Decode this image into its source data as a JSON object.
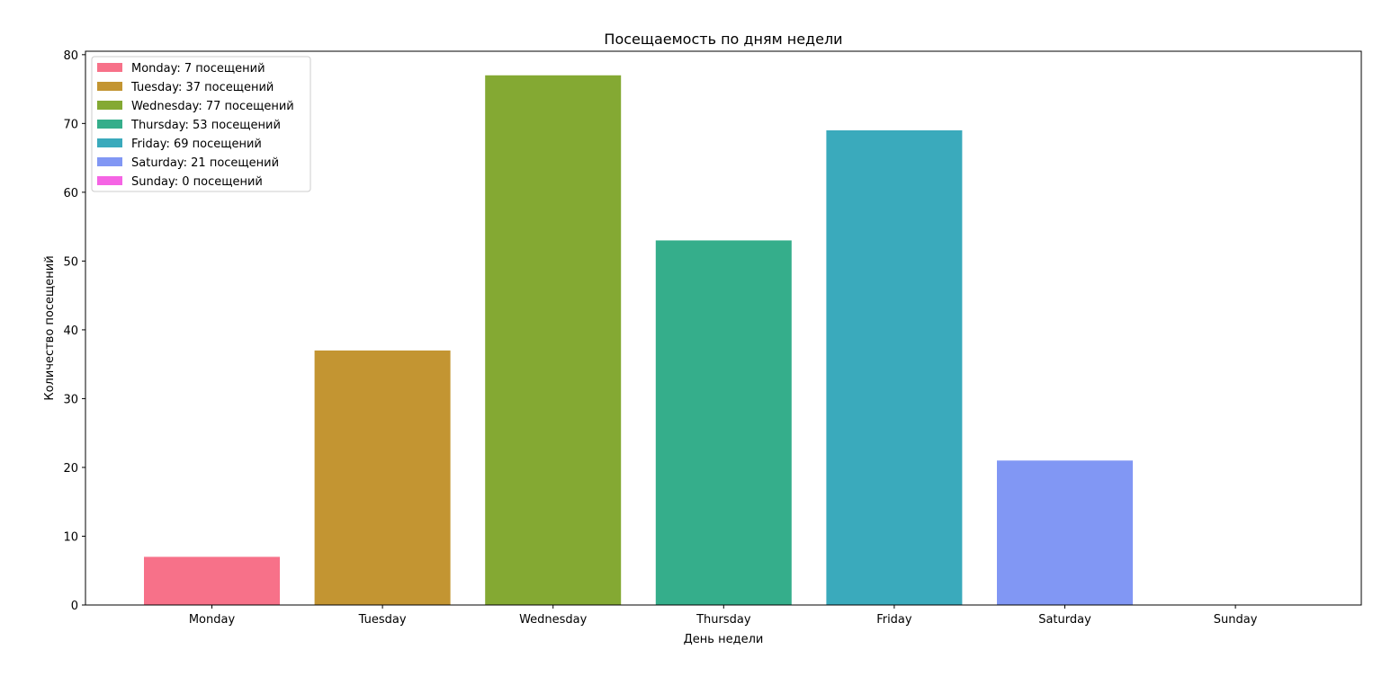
{
  "chart_data": {
    "type": "bar",
    "title": "Посещаемость по дням недели",
    "xlabel": "День недели",
    "ylabel": "Количество посещений",
    "categories": [
      "Monday",
      "Tuesday",
      "Wednesday",
      "Thursday",
      "Friday",
      "Saturday",
      "Sunday"
    ],
    "values": [
      7,
      37,
      77,
      53,
      69,
      21,
      0
    ],
    "colors": [
      "#f77189",
      "#c39532",
      "#84a933",
      "#35ae8b",
      "#3aaabc",
      "#8197f4",
      "#f564e4"
    ],
    "ylim": [
      0,
      80.5
    ],
    "yticks": [
      0,
      10,
      20,
      30,
      40,
      50,
      60,
      70,
      80
    ],
    "grid": false,
    "legend": {
      "position": "top-left",
      "entries": [
        "Monday: 7 посещений",
        "Tuesday: 37 посещений",
        "Wednesday: 77 посещений",
        "Thursday: 53 посещений",
        "Friday: 69 посещений",
        "Saturday: 21 посещений",
        "Sunday: 0 посещений"
      ]
    }
  }
}
